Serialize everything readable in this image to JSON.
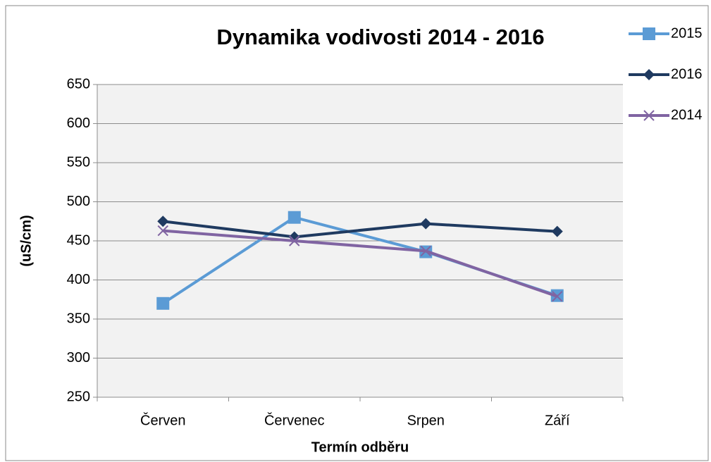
{
  "chart_data": {
    "type": "line",
    "title": "Dynamika vodivosti 2014 - 2016",
    "x_label": "Termín odběru",
    "y_label": "(uS/cm)",
    "categories": [
      "Červen",
      "Červenec",
      "Srpen",
      "Září"
    ],
    "series": [
      {
        "name": "2015",
        "color": "#5b9bd5",
        "marker": "square",
        "values": [
          370,
          480,
          436,
          380
        ]
      },
      {
        "name": "2016",
        "color": "#1f3a60",
        "marker": "diamond",
        "values": [
          475,
          455,
          472,
          462
        ]
      },
      {
        "name": "2014",
        "color": "#8064a2",
        "marker": "x",
        "values": [
          463,
          450,
          437,
          379
        ]
      }
    ],
    "ylim": [
      250,
      650
    ],
    "yticks": [
      250,
      300,
      350,
      400,
      450,
      500,
      550,
      600,
      650
    ],
    "grid": true,
    "legend": "right"
  }
}
